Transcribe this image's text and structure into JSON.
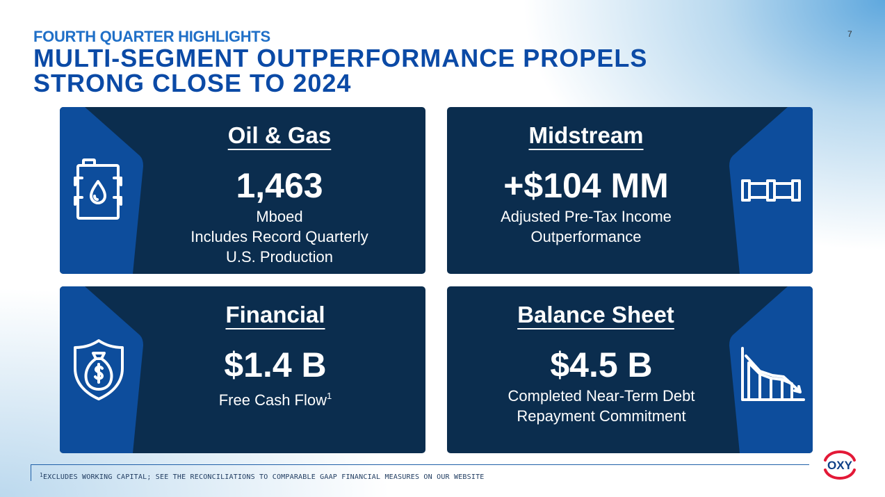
{
  "header": {
    "kicker": "FOURTH QUARTER HIGHLIGHTS",
    "title_line1": "MULTI-SEGMENT OUTPERFORMANCE PROPELS",
    "title_line2": "STRONG CLOSE TO 2024",
    "page_number": "7"
  },
  "cards": [
    {
      "title": "Oil & Gas",
      "metric": "1,463",
      "desc_lines": [
        "Mboed",
        "Includes Record Quarterly",
        "U.S. Production"
      ],
      "icon": "oil-barrel-icon"
    },
    {
      "title": "Midstream",
      "metric": "+$104 MM",
      "desc_lines": [
        "Adjusted Pre-Tax Income",
        "Outperformance"
      ],
      "icon": "pipeline-icon"
    },
    {
      "title": "Financial",
      "metric": "$1.4 B",
      "desc_text": "Free Cash Flow",
      "desc_sup": "1",
      "icon": "money-bag-shield-icon"
    },
    {
      "title": "Balance Sheet",
      "metric": "$4.5 B",
      "desc_lines": [
        "Completed Near-Term Debt",
        "Repayment Commitment"
      ],
      "icon": "declining-chart-icon"
    }
  ],
  "footer": {
    "footnote_sup": "1",
    "footnote": "EXCLUDES WORKING CAPITAL; SEE THE RECONCILIATIONS TO COMPARABLE GAAP FINANCIAL MEASURES ON OUR WEBSITE",
    "logo_text": "OXY"
  },
  "colors": {
    "card_bg": "#0b2d4e",
    "panel_blue": "#0d4d9c",
    "title_blue": "#0b4aa6",
    "kicker_blue": "#1f6fc7",
    "logo_red": "#e31937"
  }
}
